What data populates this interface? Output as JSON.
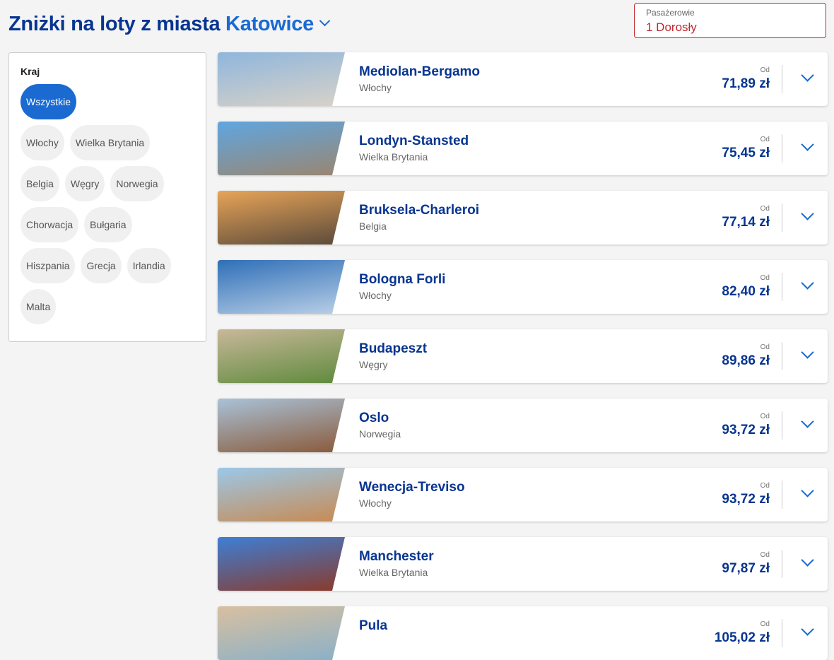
{
  "header": {
    "title_prefix": "Zniżki na loty z miasta ",
    "city": "Katowice"
  },
  "passengers": {
    "label": "Pasażerowie",
    "value": "1 Dorosły"
  },
  "filter": {
    "title": "Kraj",
    "chips": [
      "Wszystkie",
      "Włochy",
      "Wielka Brytania",
      "Belgia",
      "Węgry",
      "Norwegia",
      "Chorwacja",
      "Bułgaria",
      "Hiszpania",
      "Grecja",
      "Irlandia",
      "Malta"
    ],
    "active": "Wszystkie"
  },
  "from_label": "Od",
  "destinations": [
    {
      "city": "Mediolan-Bergamo",
      "country": "Włochy",
      "price": "71,89 zł",
      "colors": [
        "#8fb6dc",
        "#d8d2c8"
      ]
    },
    {
      "city": "Londyn-Stansted",
      "country": "Wielka Brytania",
      "price": "75,45 zł",
      "colors": [
        "#5fa6e0",
        "#9a8670"
      ]
    },
    {
      "city": "Bruksela-Charleroi",
      "country": "Belgia",
      "price": "77,14 zł",
      "colors": [
        "#e8a458",
        "#5a4a3a"
      ]
    },
    {
      "city": "Bologna Forli",
      "country": "Włochy",
      "price": "82,40 zł",
      "colors": [
        "#2f6fb8",
        "#b9cfe6"
      ]
    },
    {
      "city": "Budapeszt",
      "country": "Węgry",
      "price": "89,86 zł",
      "colors": [
        "#c8b89a",
        "#5f8a3c"
      ]
    },
    {
      "city": "Oslo",
      "country": "Norwegia",
      "price": "93,72 zł",
      "colors": [
        "#a9c2d8",
        "#8a5a3a"
      ]
    },
    {
      "city": "Wenecja-Treviso",
      "country": "Włochy",
      "price": "93,72 zł",
      "colors": [
        "#9cc8e8",
        "#c78a52"
      ]
    },
    {
      "city": "Manchester",
      "country": "Wielka Brytania",
      "price": "97,87 zł",
      "colors": [
        "#3d7fd6",
        "#8a3a2a"
      ]
    },
    {
      "city": "Pula",
      "country": "",
      "price": "105,02 zł",
      "colors": [
        "#d8c0a0",
        "#8ab0c8"
      ]
    }
  ]
}
